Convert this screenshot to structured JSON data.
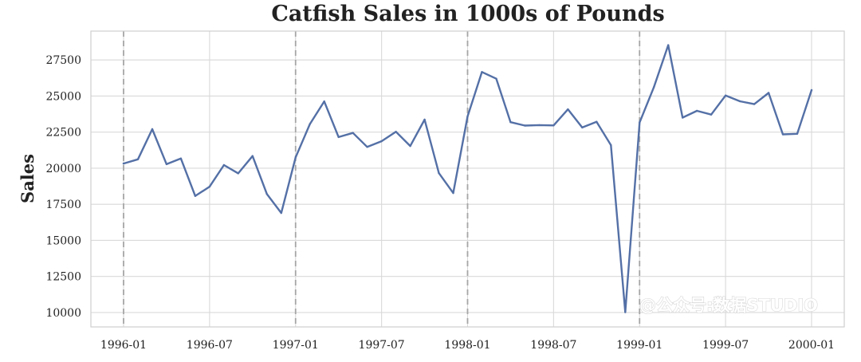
{
  "chart_data": {
    "type": "line",
    "title": "Catfish Sales in 1000s of Pounds",
    "xlabel": "",
    "ylabel": "Sales",
    "x": [
      "1996-01",
      "1996-02",
      "1996-03",
      "1996-04",
      "1996-05",
      "1996-06",
      "1996-07",
      "1996-08",
      "1996-09",
      "1996-10",
      "1996-11",
      "1996-12",
      "1997-01",
      "1997-02",
      "1997-03",
      "1997-04",
      "1997-05",
      "1997-06",
      "1997-07",
      "1997-08",
      "1997-09",
      "1997-10",
      "1997-11",
      "1997-12",
      "1998-01",
      "1998-02",
      "1998-03",
      "1998-04",
      "1998-05",
      "1998-06",
      "1998-07",
      "1998-08",
      "1998-09",
      "1998-10",
      "1998-11",
      "1998-12",
      "1999-01",
      "1999-02",
      "1999-03",
      "1999-04",
      "1999-05",
      "1999-06",
      "1999-07",
      "1999-08",
      "1999-09",
      "1999-10",
      "1999-11",
      "1999-12",
      "2000-01"
    ],
    "series": [
      {
        "values": [
          20322,
          20613,
          22704,
          20276,
          20669,
          18074,
          18719,
          20217,
          19642,
          20842,
          18204,
          16898,
          20746,
          23058,
          24624,
          22154,
          22444,
          21471,
          21870,
          22529,
          21535,
          23369,
          19661,
          18278,
          23590,
          26666,
          26200,
          23192,
          22950,
          22986,
          22963,
          24081,
          22820,
          23218,
          21601,
          10024,
          23169,
          25614,
          28525,
          23502,
          23972,
          23712,
          25034,
          24640,
          24440,
          25216,
          22346,
          22385,
          25412
        ],
        "color": "#5470a6"
      }
    ],
    "x_ticks": [
      "1996-01",
      "1996-07",
      "1997-01",
      "1997-07",
      "1998-01",
      "1998-07",
      "1999-01",
      "1999-07",
      "2000-01"
    ],
    "y_ticks": [
      "10000",
      "12500",
      "15000",
      "17500",
      "20000",
      "22500",
      "25000",
      "27500"
    ],
    "vlines": [
      "1996-01",
      "1997-01",
      "1998-01",
      "1999-01"
    ],
    "ylim": [
      9000,
      29500
    ],
    "grid": true,
    "legend": "none"
  },
  "watermark": "@公众号:数据STUDIO"
}
